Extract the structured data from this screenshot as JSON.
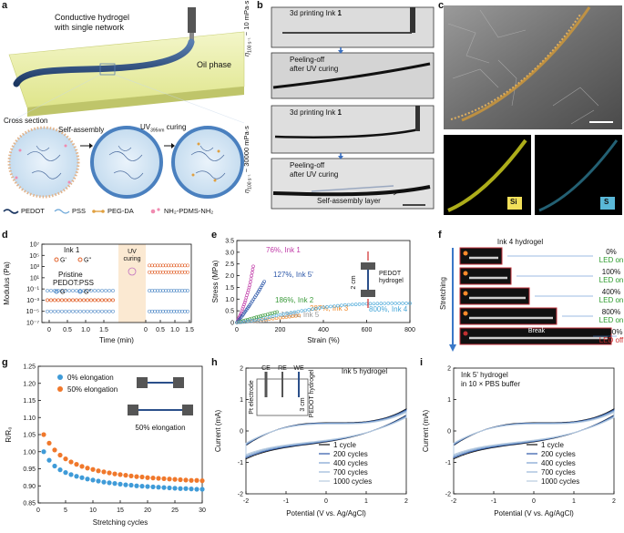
{
  "panels": {
    "a": {
      "letter": "a",
      "title_line1": "Conductive hydrogel",
      "title_line2": "with single network",
      "oil": "Oil phase",
      "cross_section": "Cross section",
      "self_assembly": "Self-assembly",
      "uv": "UV",
      "uv_sub": "395nm",
      "curing": "curing",
      "legend": [
        "PEDOT",
        "PSS",
        "PEG-DA",
        "NH₂-PDMS-NH₂"
      ]
    },
    "b": {
      "letter": "b",
      "ink_top": "3d printing Ink ",
      "ink_num": "1",
      "peel1": "Peeling-off",
      "peel2": "after UV curing",
      "eta_low": "~ 10 mPa·s",
      "eta_high": "~ 30000 mPa·s",
      "eta_symbol": "η",
      "eta_sub": "100 s⁻¹",
      "sal": "Self-assembly layer"
    },
    "c": {
      "letter": "c",
      "si": "Si",
      "s": "S"
    },
    "f": {
      "letter": "f",
      "title": "Ink 4 hydrogel",
      "stretching": "Stretching",
      "rows": [
        {
          "pct": "0%",
          "led": "LED on"
        },
        {
          "pct": "100%",
          "led": "LED on"
        },
        {
          "pct": "400%",
          "led": "LED on"
        },
        {
          "pct": "800%",
          "led": "LED on"
        },
        {
          "pct": "1000%",
          "led": "LED off"
        }
      ],
      "break_label": "Break"
    }
  },
  "chart_data": [
    {
      "panel": "d",
      "type": "scatter",
      "ylabel": "Modulus (Pa)",
      "xlabel": "Time (min)",
      "yscale": "log",
      "ylim_exp": [
        -7,
        7
      ],
      "yticks": [
        "10⁷",
        "10⁵",
        "10³",
        "10¹",
        "10⁻¹",
        "10⁻³",
        "10⁻⁵",
        "10⁻⁷"
      ],
      "xticks": [
        "0",
        "0.5",
        "1.0",
        "1.5",
        "0",
        "0.5",
        "1.0",
        "1.5"
      ],
      "uv_label1": "UV",
      "uv_label2": "curing",
      "legend_ink": "Ink ",
      "legend_ink_num": "1",
      "legend_pristine1": "Pristine",
      "legend_pristine2": "PEDOT:PSS",
      "legend_gp": "G'",
      "legend_gpp": "G''",
      "series": [
        {
          "name": "Ink 1 G'",
          "before_exp": -3,
          "after_exp": 3.2,
          "color": "#e2622b"
        },
        {
          "name": "Ink 1 G''",
          "before_exp": -3,
          "after_exp": 2.0,
          "color": "#e2622b"
        },
        {
          "name": "Pristine G'",
          "before_exp": -1.3,
          "after_exp": -1.3,
          "color": "#4a86c5"
        },
        {
          "name": "Pristine G''",
          "before_exp": -5.0,
          "after_exp": -5.0,
          "color": "#4a86c5"
        }
      ]
    },
    {
      "panel": "e",
      "type": "line",
      "ylabel": "Stress (MPa)",
      "xlabel": "Strain (%)",
      "xlim": [
        0,
        800
      ],
      "ylim": [
        0,
        3.5
      ],
      "xticks": [
        "0",
        "200",
        "400",
        "600",
        "800"
      ],
      "yticks": [
        "0",
        "0.5",
        "1.0",
        "1.5",
        "2.0",
        "2.5",
        "3.0",
        "3.5"
      ],
      "inset": "PEDOT hydrogel",
      "inset_len": "2 cm",
      "series": [
        {
          "label": "76%, Ink 1",
          "color": "#c03aa8",
          "pts": [
            [
              0,
              0
            ],
            [
              20,
              0.4
            ],
            [
              40,
              0.95
            ],
            [
              60,
              1.6
            ],
            [
              76,
              2.4
            ]
          ]
        },
        {
          "label": "127%, Ink 5'",
          "color": "#2b56a8",
          "pts": [
            [
              0,
              0
            ],
            [
              30,
              0.35
            ],
            [
              60,
              0.75
            ],
            [
              95,
              1.25
            ],
            [
              127,
              1.75
            ]
          ]
        },
        {
          "label": "186%, Ink 2",
          "color": "#3a9a3a",
          "pts": [
            [
              0,
              0
            ],
            [
              60,
              0.15
            ],
            [
              120,
              0.3
            ],
            [
              186,
              0.45
            ]
          ]
        },
        {
          "label": "287%, Ink 3",
          "color": "#f08a2b",
          "pts": [
            [
              0,
              0
            ],
            [
              100,
              0.1
            ],
            [
              200,
              0.2
            ],
            [
              287,
              0.3
            ]
          ]
        },
        {
          "label": "136%, Ink 5",
          "color": "#999999",
          "pts": [
            [
              0,
              0
            ],
            [
              60,
              0.04
            ],
            [
              136,
              0.08
            ]
          ]
        },
        {
          "label": "800%, Ink 4",
          "color": "#45a6d8",
          "pts": [
            [
              0,
              0
            ],
            [
              100,
              0.12
            ],
            [
              200,
              0.33
            ],
            [
              300,
              0.5
            ],
            [
              400,
              0.65
            ],
            [
              500,
              0.75
            ],
            [
              600,
              0.8
            ],
            [
              700,
              0.82
            ],
            [
              800,
              0.82
            ]
          ]
        }
      ]
    },
    {
      "panel": "g",
      "type": "scatter",
      "ylabel": "R/R₀",
      "xlabel": "Stretching cycles",
      "xlim": [
        0,
        30
      ],
      "ylim": [
        0.85,
        1.25
      ],
      "xticks": [
        "0",
        "5",
        "10",
        "15",
        "20",
        "25",
        "30"
      ],
      "yticks": [
        "0.85",
        "0.90",
        "0.95",
        "1.00",
        "1.05",
        "1.10",
        "1.15",
        "1.20",
        "1.25"
      ],
      "inset": "50% elongation",
      "series": [
        {
          "name": "0% elongation",
          "color": "#3f9bd8",
          "x": [
            1,
            2,
            3,
            4,
            5,
            6,
            7,
            8,
            9,
            10,
            11,
            12,
            13,
            14,
            15,
            16,
            17,
            18,
            19,
            20,
            21,
            22,
            23,
            24,
            25,
            26,
            27,
            28,
            29,
            30
          ],
          "y": [
            1.0,
            0.975,
            0.958,
            0.947,
            0.939,
            0.933,
            0.928,
            0.924,
            0.92,
            0.917,
            0.914,
            0.911,
            0.909,
            0.907,
            0.905,
            0.903,
            0.902,
            0.9,
            0.899,
            0.898,
            0.897,
            0.896,
            0.895,
            0.894,
            0.893,
            0.892,
            0.892,
            0.891,
            0.89,
            0.89
          ]
        },
        {
          "name": "50% elongation",
          "color": "#f0782b",
          "x": [
            1,
            2,
            3,
            4,
            5,
            6,
            7,
            8,
            9,
            10,
            11,
            12,
            13,
            14,
            15,
            16,
            17,
            18,
            19,
            20,
            21,
            22,
            23,
            24,
            25,
            26,
            27,
            28,
            29,
            30
          ],
          "y": [
            1.05,
            1.025,
            1.005,
            0.99,
            0.979,
            0.97,
            0.963,
            0.957,
            0.952,
            0.948,
            0.944,
            0.941,
            0.938,
            0.935,
            0.933,
            0.931,
            0.929,
            0.927,
            0.926,
            0.924,
            0.923,
            0.922,
            0.921,
            0.92,
            0.919,
            0.918,
            0.917,
            0.916,
            0.916,
            0.915
          ]
        }
      ]
    },
    {
      "panel": "h",
      "type": "line",
      "title": "Ink 5 hydrogel",
      "ylabel": "Current (mA)",
      "xlabel": "Potential (V vs. Ag/AgCl)",
      "xlim": [
        -2,
        2
      ],
      "ylim": [
        -2,
        2
      ],
      "xticks": [
        "-2",
        "-1",
        "0",
        "1",
        "2"
      ],
      "yticks": [
        "-2",
        "-1",
        "0",
        "1",
        "2"
      ],
      "inset": {
        "ce": "CE",
        "re": "RE",
        "we": "WE",
        "pt": "Pt electrode",
        "pedot": "PEDOT hydrogel",
        "len": "3 cm"
      },
      "series": [
        {
          "name": "1 cycle"
        },
        {
          "name": "200 cycles"
        },
        {
          "name": "400 cycles"
        },
        {
          "name": "700 cycles"
        },
        {
          "name": "1000 cycles"
        }
      ]
    },
    {
      "panel": "i",
      "type": "line",
      "title": "Ink 5' hydrogel",
      "title2": "in 10 × PBS buffer",
      "ylabel": "Current (mA)",
      "xlabel": "Potential (V vs. Ag/AgCl)",
      "xlim": [
        -2,
        2
      ],
      "ylim": [
        -2,
        2
      ],
      "xticks": [
        "-2",
        "-1",
        "0",
        "1",
        "2"
      ],
      "yticks": [
        "-2",
        "-1",
        "0",
        "1",
        "2"
      ],
      "series": [
        {
          "name": "1 cycle"
        },
        {
          "name": "200 cycles"
        },
        {
          "name": "400 cycles"
        },
        {
          "name": "700 cycles"
        },
        {
          "name": "1000 cycles"
        }
      ]
    }
  ]
}
